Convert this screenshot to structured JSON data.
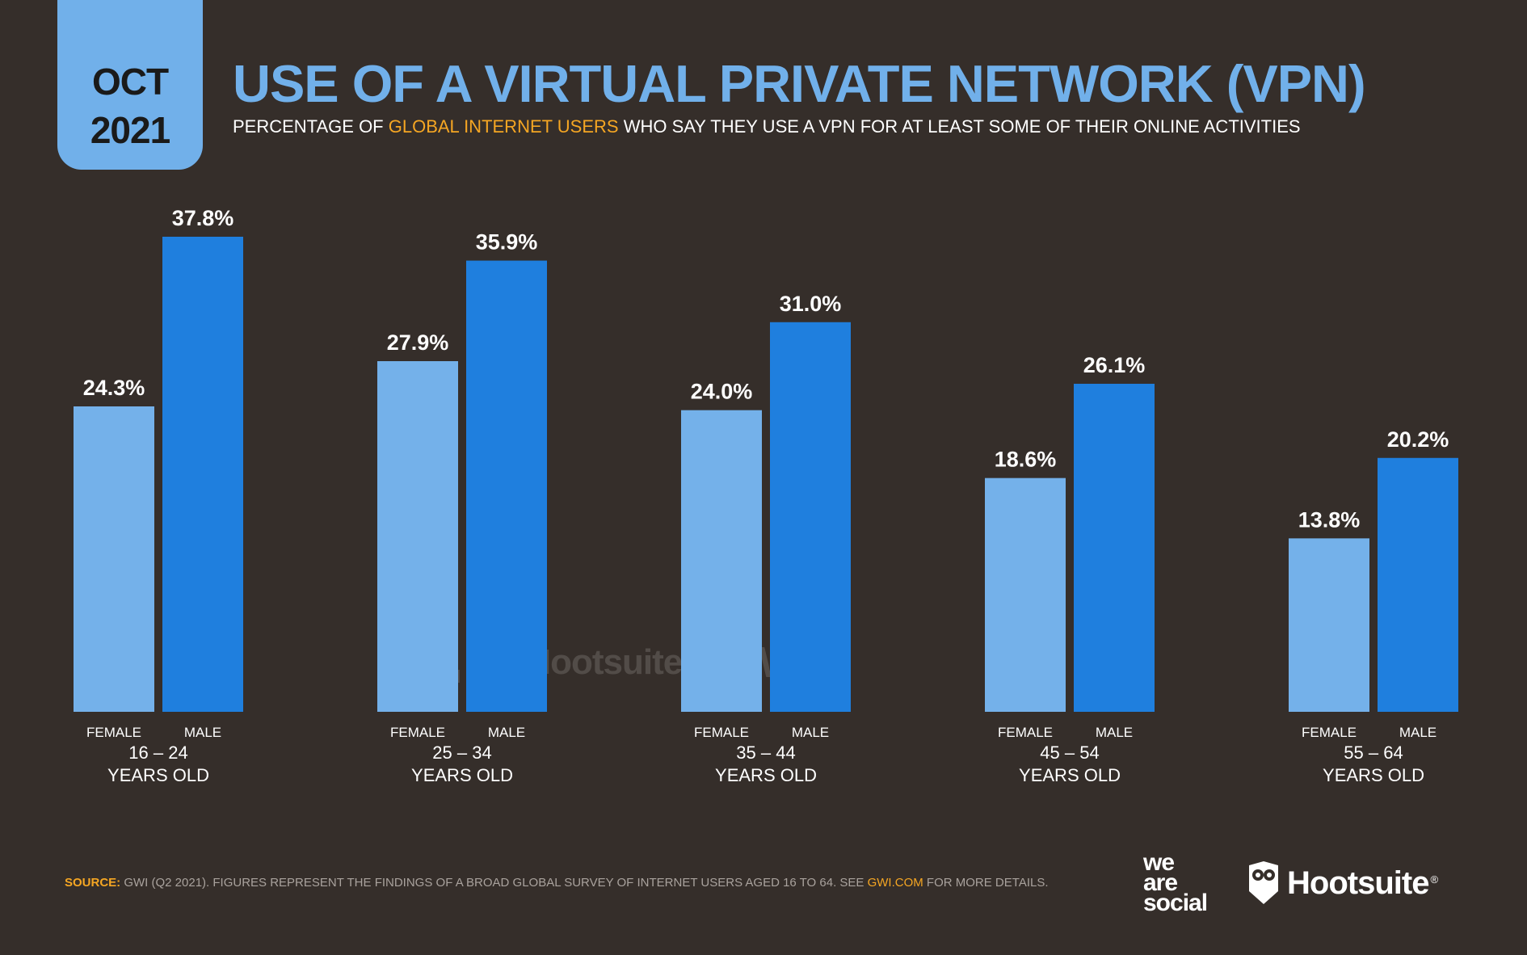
{
  "header": {
    "date_month": "OCT",
    "date_year": "2021",
    "title": "USE OF A VIRTUAL PRIVATE NETWORK (VPN)",
    "subtitle_pre": "PERCENTAGE OF ",
    "subtitle_highlight": "GLOBAL INTERNET USERS",
    "subtitle_post": " WHO SAY THEY USE A VPN FOR AT LEAST SOME OF THEIR ONLINE ACTIVITIES"
  },
  "chart_data": {
    "type": "bar",
    "categories": [
      "16 – 24",
      "25 – 34",
      "35 – 44",
      "45 – 54",
      "55 – 64"
    ],
    "category_sublabel": "YEARS OLD",
    "series": [
      {
        "name": "FEMALE",
        "values": [
          24.3,
          27.9,
          24.0,
          18.6,
          13.8
        ],
        "labels": [
          "24.3%",
          "27.9%",
          "24.0%",
          "18.6%",
          "13.8%"
        ],
        "color": "#74b1ea"
      },
      {
        "name": "MALE",
        "values": [
          37.8,
          35.9,
          31.0,
          26.1,
          20.2
        ],
        "labels": [
          "37.8%",
          "35.9%",
          "31.0%",
          "26.1%",
          "20.2%"
        ],
        "color": "#1f7fde"
      }
    ],
    "ylim": [
      0,
      37.8
    ],
    "grid": false,
    "legend": "none"
  },
  "watermark": {
    "was_lines": [
      "we",
      "are",
      "social"
    ],
    "hootsuite": "Hootsuite",
    "gwi": "GWI."
  },
  "footer": {
    "source_label": "SOURCE:",
    "source_text": " GWI (Q2 2021). FIGURES REPRESENT THE FINDINGS OF A BROAD GLOBAL SURVEY OF INTERNET USERS AGED 16 TO 64. SEE ",
    "source_link": "GWI.COM",
    "source_post": " FOR MORE DETAILS."
  },
  "logos": {
    "was_lines": [
      "we",
      "are",
      "social"
    ],
    "hootsuite": "Hootsuite",
    "hootsuite_reg": "®"
  },
  "colors": {
    "background": "#352e2a",
    "accent": "#71b0ea",
    "highlight": "#f5a623"
  }
}
